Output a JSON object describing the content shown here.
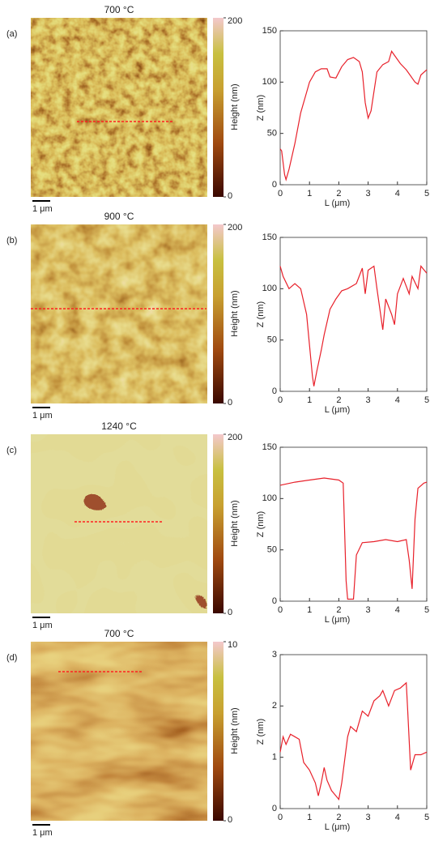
{
  "chart_data": [
    {
      "type": "line",
      "panel_label": "(a)",
      "title": "700 °C",
      "scale_bar": "1 μm",
      "colorbar_label": "Height (nm)",
      "clim": [
        0,
        200
      ],
      "cticks": [
        0,
        200
      ],
      "xlabel": "L (μm)",
      "ylabel": "Z (nm)",
      "color": "#e8202a",
      "xlim": [
        0,
        5
      ],
      "ylim": [
        0,
        150
      ],
      "xticks": [
        0,
        1,
        2,
        3,
        4,
        5
      ],
      "yticks": [
        0,
        50,
        100,
        150
      ],
      "x": [
        0,
        0.05,
        0.15,
        0.2,
        0.3,
        0.5,
        0.7,
        0.9,
        1.0,
        1.2,
        1.4,
        1.6,
        1.7,
        1.9,
        2.1,
        2.3,
        2.5,
        2.7,
        2.8,
        2.9,
        3.0,
        3.1,
        3.3,
        3.5,
        3.7,
        3.8,
        3.9,
        4.1,
        4.3,
        4.5,
        4.6,
        4.7,
        4.8,
        5.0
      ],
      "values": [
        35,
        33,
        10,
        5,
        15,
        40,
        70,
        90,
        100,
        110,
        113,
        113,
        105,
        104,
        115,
        122,
        124,
        120,
        110,
        80,
        65,
        72,
        110,
        117,
        120,
        130,
        126,
        118,
        112,
        104,
        100,
        98,
        107,
        112
      ]
    },
    {
      "type": "line",
      "panel_label": "(b)",
      "title": "900 °C",
      "scale_bar": "1 μm",
      "colorbar_label": "Height (nm)",
      "clim": [
        0,
        200
      ],
      "cticks": [
        0,
        200
      ],
      "xlabel": "L (μm)",
      "ylabel": "Z (nm)",
      "color": "#e8202a",
      "xlim": [
        0,
        5
      ],
      "ylim": [
        0,
        150
      ],
      "xticks": [
        0,
        1,
        2,
        3,
        4,
        5
      ],
      "yticks": [
        0,
        50,
        100,
        150
      ],
      "x": [
        0,
        0.1,
        0.3,
        0.5,
        0.7,
        0.9,
        1.0,
        1.1,
        1.15,
        1.25,
        1.4,
        1.5,
        1.7,
        1.9,
        2.1,
        2.3,
        2.6,
        2.8,
        2.9,
        3.0,
        3.2,
        3.3,
        3.5,
        3.6,
        3.8,
        3.9,
        4.0,
        4.2,
        4.4,
        4.5,
        4.7,
        4.8,
        5.0
      ],
      "values": [
        122,
        112,
        100,
        105,
        100,
        75,
        45,
        15,
        5,
        20,
        40,
        55,
        80,
        90,
        98,
        100,
        105,
        120,
        95,
        118,
        122,
        100,
        60,
        90,
        75,
        65,
        95,
        110,
        95,
        112,
        100,
        122,
        115
      ]
    },
    {
      "type": "line",
      "panel_label": "(c)",
      "title": "1240 °C",
      "scale_bar": "1 μm",
      "colorbar_label": "Height (nm)",
      "clim": [
        0,
        200
      ],
      "cticks": [
        0,
        200
      ],
      "xlabel": "L (μm)",
      "ylabel": "Z (nm)",
      "color": "#e8202a",
      "xlim": [
        0,
        5
      ],
      "ylim": [
        0,
        150
      ],
      "xticks": [
        0,
        1,
        2,
        3,
        4,
        5
      ],
      "yticks": [
        0,
        50,
        100,
        150
      ],
      "x": [
        0,
        0.5,
        1.0,
        1.5,
        2.0,
        2.15,
        2.25,
        2.3,
        2.5,
        2.6,
        2.8,
        3.2,
        3.6,
        4.0,
        4.3,
        4.4,
        4.5,
        4.6,
        4.7,
        4.9,
        5.0
      ],
      "values": [
        113,
        116,
        118,
        120,
        118,
        115,
        20,
        2,
        2,
        45,
        57,
        58,
        60,
        58,
        60,
        40,
        12,
        80,
        110,
        115,
        116
      ]
    },
    {
      "type": "line",
      "panel_label": "(d)",
      "title": "700 °C",
      "scale_bar": "1 μm",
      "colorbar_label": "Height (nm)",
      "clim": [
        0,
        10
      ],
      "cticks": [
        0,
        10
      ],
      "xlabel": "L (μm)",
      "ylabel": "Z (nm)",
      "color": "#e8202a",
      "xlim": [
        0,
        5
      ],
      "ylim": [
        0,
        3
      ],
      "xticks": [
        0,
        1,
        2,
        3,
        4,
        5
      ],
      "yticks": [
        0,
        1,
        2,
        3
      ],
      "x": [
        0,
        0.1,
        0.2,
        0.35,
        0.5,
        0.65,
        0.8,
        1.0,
        1.2,
        1.3,
        1.4,
        1.5,
        1.6,
        1.75,
        1.9,
        2.0,
        2.1,
        2.3,
        2.4,
        2.6,
        2.8,
        3.0,
        3.2,
        3.4,
        3.5,
        3.7,
        3.9,
        4.1,
        4.2,
        4.3,
        4.35,
        4.45,
        4.6,
        4.8,
        5.0
      ],
      "values": [
        1.1,
        1.4,
        1.25,
        1.45,
        1.4,
        1.35,
        0.9,
        0.75,
        0.5,
        0.25,
        0.5,
        0.8,
        0.55,
        0.35,
        0.25,
        0.18,
        0.5,
        1.4,
        1.6,
        1.5,
        1.9,
        1.8,
        2.1,
        2.2,
        2.3,
        2.0,
        2.3,
        2.35,
        2.4,
        2.45,
        1.9,
        0.75,
        1.05,
        1.05,
        1.1
      ]
    }
  ]
}
